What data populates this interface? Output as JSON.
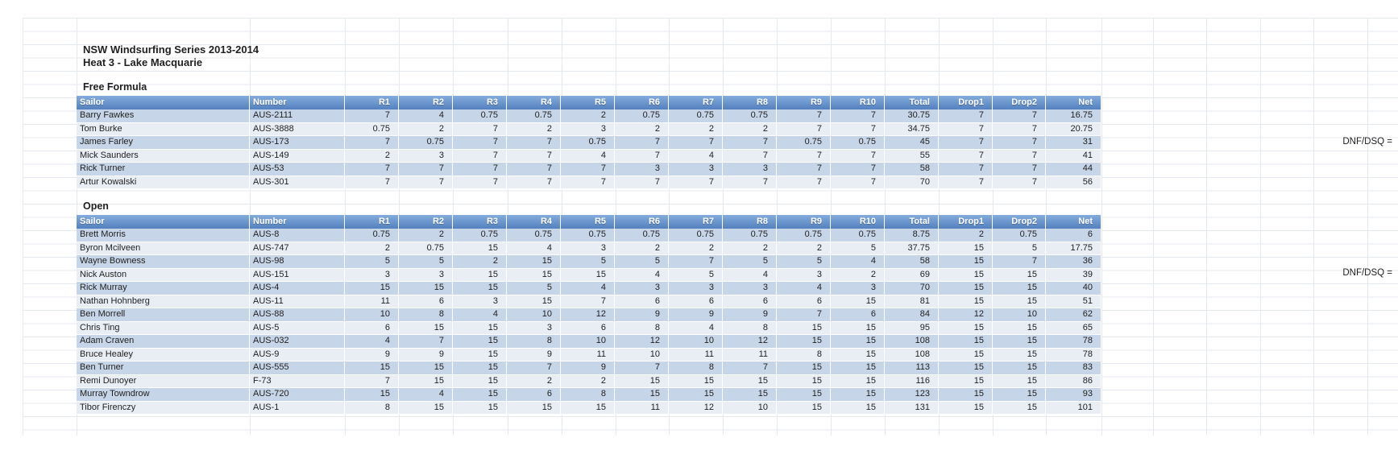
{
  "titles": {
    "line1": "NSW Windsurfing Series 2013-2014",
    "line2": "Heat 3 - Lake Macquarie"
  },
  "columns": [
    "Sailor",
    "Number",
    "R1",
    "R2",
    "R3",
    "R4",
    "R5",
    "R6",
    "R7",
    "R8",
    "R9",
    "R10",
    "Total",
    "Drop1",
    "Drop2",
    "Net"
  ],
  "sections": [
    {
      "name": "Free Formula",
      "rows": [
        [
          "Barry Fawkes",
          "AUS-2111",
          "7",
          "4",
          "0.75",
          "0.75",
          "2",
          "0.75",
          "0.75",
          "0.75",
          "7",
          "7",
          "30.75",
          "7",
          "7",
          "16.75"
        ],
        [
          "Tom Burke",
          "AUS-3888",
          "0.75",
          "2",
          "7",
          "2",
          "3",
          "2",
          "2",
          "2",
          "7",
          "7",
          "34.75",
          "7",
          "7",
          "20.75"
        ],
        [
          "James Farley",
          "AUS-173",
          "7",
          "0.75",
          "7",
          "7",
          "0.75",
          "7",
          "7",
          "7",
          "0.75",
          "0.75",
          "45",
          "7",
          "7",
          "31"
        ],
        [
          "Mick Saunders",
          "AUS-149",
          "2",
          "3",
          "7",
          "7",
          "4",
          "7",
          "4",
          "7",
          "7",
          "7",
          "55",
          "7",
          "7",
          "41"
        ],
        [
          "Rick Turner",
          "AUS-53",
          "7",
          "7",
          "7",
          "7",
          "7",
          "3",
          "3",
          "3",
          "7",
          "7",
          "58",
          "7",
          "7",
          "44"
        ],
        [
          "Artur Kowalski",
          "AUS-301",
          "7",
          "7",
          "7",
          "7",
          "7",
          "7",
          "7",
          "7",
          "7",
          "7",
          "70",
          "7",
          "7",
          "56"
        ]
      ]
    },
    {
      "name": "Open",
      "rows": [
        [
          "Brett Morris",
          "AUS-8",
          "0.75",
          "2",
          "0.75",
          "0.75",
          "0.75",
          "0.75",
          "0.75",
          "0.75",
          "0.75",
          "0.75",
          "8.75",
          "2",
          "0.75",
          "6"
        ],
        [
          "Byron Mcilveen",
          "AUS-747",
          "2",
          "0.75",
          "15",
          "4",
          "3",
          "2",
          "2",
          "2",
          "2",
          "5",
          "37.75",
          "15",
          "5",
          "17.75"
        ],
        [
          "Wayne Bowness",
          "AUS-98",
          "5",
          "5",
          "2",
          "15",
          "5",
          "5",
          "7",
          "5",
          "5",
          "4",
          "58",
          "15",
          "7",
          "36"
        ],
        [
          "Nick Auston",
          "AUS-151",
          "3",
          "3",
          "15",
          "15",
          "15",
          "4",
          "5",
          "4",
          "3",
          "2",
          "69",
          "15",
          "15",
          "39"
        ],
        [
          "Rick Murray",
          "AUS-4",
          "15",
          "15",
          "15",
          "5",
          "4",
          "3",
          "3",
          "3",
          "4",
          "3",
          "70",
          "15",
          "15",
          "40"
        ],
        [
          "Nathan Hohnberg",
          "AUS-11",
          "11",
          "6",
          "3",
          "15",
          "7",
          "6",
          "6",
          "6",
          "6",
          "15",
          "81",
          "15",
          "15",
          "51"
        ],
        [
          "Ben Morrell",
          "AUS-88",
          "10",
          "8",
          "4",
          "10",
          "12",
          "9",
          "9",
          "9",
          "7",
          "6",
          "84",
          "12",
          "10",
          "62"
        ],
        [
          "Chris Ting",
          "AUS-5",
          "6",
          "15",
          "15",
          "3",
          "6",
          "8",
          "4",
          "8",
          "15",
          "15",
          "95",
          "15",
          "15",
          "65"
        ],
        [
          "Adam Craven",
          "AUS-032",
          "4",
          "7",
          "15",
          "8",
          "10",
          "12",
          "10",
          "12",
          "15",
          "15",
          "108",
          "15",
          "15",
          "78"
        ],
        [
          "Bruce Healey",
          "AUS-9",
          "9",
          "9",
          "15",
          "9",
          "11",
          "10",
          "11",
          "11",
          "8",
          "15",
          "108",
          "15",
          "15",
          "78"
        ],
        [
          "Ben Turner",
          "AUS-555",
          "15",
          "15",
          "15",
          "7",
          "9",
          "7",
          "8",
          "7",
          "15",
          "15",
          "113",
          "15",
          "15",
          "83"
        ],
        [
          "Remi Dunoyer",
          "F-73",
          "7",
          "15",
          "15",
          "2",
          "2",
          "15",
          "15",
          "15",
          "15",
          "15",
          "116",
          "15",
          "15",
          "86"
        ],
        [
          "Murray Towndrow",
          "AUS-720",
          "15",
          "4",
          "15",
          "6",
          "8",
          "15",
          "15",
          "15",
          "15",
          "15",
          "123",
          "15",
          "15",
          "93"
        ],
        [
          "Tibor Firenczy",
          "AUS-1",
          "8",
          "15",
          "15",
          "15",
          "15",
          "11",
          "12",
          "10",
          "15",
          "15",
          "131",
          "15",
          "15",
          "101"
        ]
      ]
    }
  ],
  "annotations": {
    "dnf_note": "DNF/DSQ ="
  },
  "colors": {
    "header_top": "#83acdc",
    "header_bottom": "#5480bf",
    "row_odd": "#c7d5e8",
    "row_even": "#e9eef5",
    "grid_line": "#e4e9f0",
    "header_text": "#ffffff",
    "body_text": "#1f1f1f"
  }
}
